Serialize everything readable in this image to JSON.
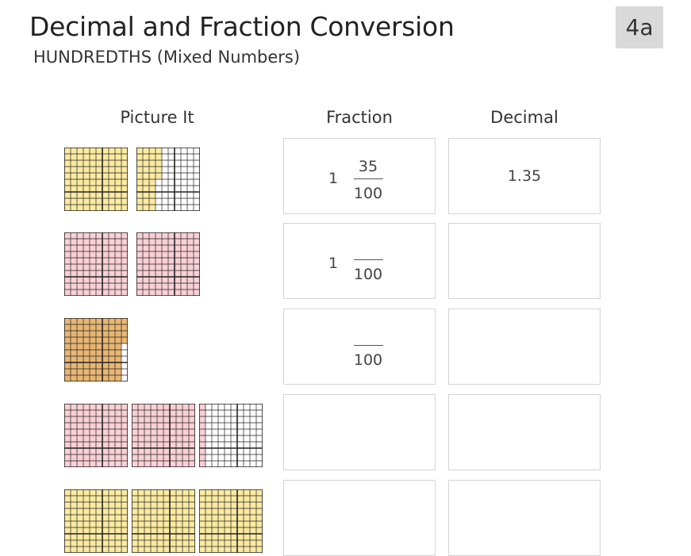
{
  "header": {
    "title": "Decimal and Fraction Conversion",
    "subtitle": "HUNDREDTHS (Mixed Numbers)",
    "badge": "4a"
  },
  "columns": {
    "picture": "Picture It",
    "fraction": "Fraction",
    "decimal": "Decimal"
  },
  "colors": {
    "yellow": "#fbeaa1",
    "pink": "#f9d0d6",
    "orange": "#e8b673",
    "grid_line": "#222222"
  },
  "rows": [
    {
      "grids": [
        {
          "shaded": 100,
          "color": "yellow"
        },
        {
          "shaded": 35,
          "color": "yellow"
        }
      ],
      "fraction": {
        "whole": "1",
        "numerator": "35",
        "denominator": "100"
      },
      "decimal": "1.35"
    },
    {
      "grids": [
        {
          "shaded": 100,
          "color": "pink"
        },
        {
          "shaded": 100,
          "color": "pink"
        }
      ],
      "fraction": {
        "whole": "1",
        "numerator": "",
        "denominator": "100"
      },
      "decimal": ""
    },
    {
      "grids": [
        {
          "shaded": 94,
          "color": "orange"
        }
      ],
      "fraction": {
        "whole": "",
        "numerator": "",
        "denominator": "100"
      },
      "decimal": ""
    },
    {
      "grids": [
        {
          "shaded": 100,
          "color": "pink"
        },
        {
          "shaded": 100,
          "color": "pink"
        },
        {
          "shaded": 10,
          "color": "pink"
        }
      ],
      "fraction": {
        "whole": "",
        "numerator": "",
        "denominator": ""
      },
      "decimal": ""
    },
    {
      "grids": [
        {
          "shaded": 100,
          "color": "yellow"
        },
        {
          "shaded": 100,
          "color": "yellow"
        },
        {
          "shaded": 100,
          "color": "yellow"
        }
      ],
      "fraction": {
        "whole": "",
        "numerator": "",
        "denominator": ""
      },
      "decimal": ""
    }
  ]
}
